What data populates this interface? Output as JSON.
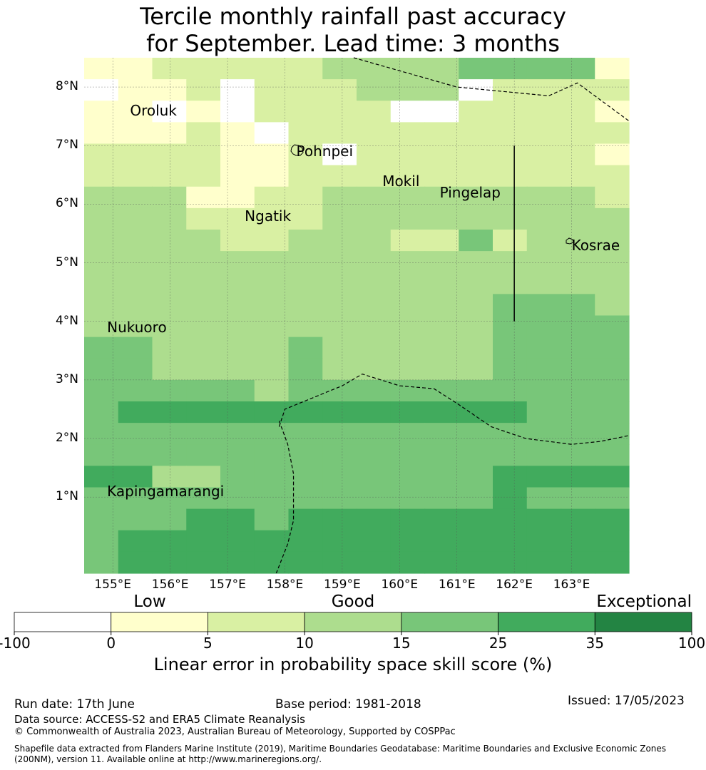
{
  "title": {
    "line1": "Tercile monthly rainfall past accuracy",
    "line2": "for September. Lead time: 3 months"
  },
  "map": {
    "lon_range": [
      154.5,
      164.0
    ],
    "lat_range": [
      -0.3,
      8.5
    ],
    "lat_ticks": [
      {
        "value": 8,
        "label": "8°N"
      },
      {
        "value": 7,
        "label": "7°N"
      },
      {
        "value": 6,
        "label": "6°N"
      },
      {
        "value": 5,
        "label": "5°N"
      },
      {
        "value": 4,
        "label": "4°N"
      },
      {
        "value": 3,
        "label": "3°N"
      },
      {
        "value": 2,
        "label": "2°N"
      },
      {
        "value": 1,
        "label": "1°N"
      }
    ],
    "lon_ticks": [
      {
        "value": 155,
        "label": "155°E"
      },
      {
        "value": 156,
        "label": "156°E"
      },
      {
        "value": 157,
        "label": "157°E"
      },
      {
        "value": 158,
        "label": "158°E"
      },
      {
        "value": 159,
        "label": "159°E"
      },
      {
        "value": 160,
        "label": "160°E"
      },
      {
        "value": 161,
        "label": "161°E"
      },
      {
        "value": 162,
        "label": "162°E"
      },
      {
        "value": 163,
        "label": "163°E"
      }
    ],
    "grid_cell_deg": [
      0.833,
      0.556
    ],
    "skill_grid": [
      "1122222333344441",
      "0112022233302222",
      "1101022220022221",
      "1112102222222222",
      "2222112022222221",
      "2222112222222222",
      "3331122333333332",
      "3332222333333333",
      "3333223332242333",
      "3333333333333333",
      "3333333333333333",
      "3333333333334443",
      "3333333333334444",
      "4433334333334444",
      "4433334333334444",
      "4444434444444444",
      "4555555555555444",
      "4444444444444444",
      "4444444444444444",
      "5533444444445555",
      "4444444444445444",
      "4445545555555555",
      "4555555555555555",
      "4555555555555555"
    ],
    "places": [
      {
        "name": "Oroluk",
        "lon": 155.3,
        "lat": 7.6
      },
      {
        "name": "Pohnpei",
        "lon": 158.2,
        "lat": 6.9
      },
      {
        "name": "Mokil",
        "lon": 159.7,
        "lat": 6.4
      },
      {
        "name": "Pingelap",
        "lon": 160.7,
        "lat": 6.2
      },
      {
        "name": "Ngatik",
        "lon": 157.3,
        "lat": 5.8
      },
      {
        "name": "Kosrae",
        "lon": 163.0,
        "lat": 5.3
      },
      {
        "name": "Nukuoro",
        "lon": 154.9,
        "lat": 3.9
      },
      {
        "name": "Kapingamarangi",
        "lon": 154.9,
        "lat": 1.1
      }
    ],
    "boundary_lines": [
      [
        [
          159.2,
          8.55
        ],
        [
          161.0,
          8.0
        ],
        [
          162.6,
          7.85
        ],
        [
          163.1,
          8.07
        ],
        [
          164.0,
          7.42
        ]
      ],
      [
        [
          157.9,
          2.2
        ],
        [
          158.0,
          2.5
        ],
        [
          158.5,
          2.7
        ],
        [
          159.0,
          2.9
        ],
        [
          159.35,
          3.1
        ],
        [
          160.0,
          2.9
        ],
        [
          160.6,
          2.85
        ],
        [
          161.0,
          2.6
        ],
        [
          161.6,
          2.2
        ],
        [
          162.2,
          2.0
        ],
        [
          163.0,
          1.9
        ],
        [
          163.5,
          1.95
        ],
        [
          164.0,
          2.05
        ]
      ],
      [
        [
          157.9,
          2.3
        ],
        [
          158.05,
          1.9
        ],
        [
          158.15,
          1.4
        ],
        [
          158.15,
          0.6
        ],
        [
          158.05,
          0.2
        ],
        [
          157.85,
          -0.3
        ]
      ]
    ],
    "eez_marker_line": {
      "lon": 162.0,
      "lat": [
        4.0,
        7.0
      ]
    }
  },
  "colorbar": {
    "categories": [
      {
        "label": "Low",
        "pos": 0.2
      },
      {
        "label": "Good",
        "pos": 0.5
      },
      {
        "label": "Exceptional",
        "pos": 0.93
      }
    ],
    "bins": [
      {
        "from": -100,
        "to": 0,
        "color": "#ffffff"
      },
      {
        "from": 0,
        "to": 5,
        "color": "#ffffcc"
      },
      {
        "from": 5,
        "to": 10,
        "color": "#d9f0a3"
      },
      {
        "from": 10,
        "to": 15,
        "color": "#addd8e"
      },
      {
        "from": 15,
        "to": 25,
        "color": "#78c679"
      },
      {
        "from": 25,
        "to": 35,
        "color": "#41ab5d"
      },
      {
        "from": 35,
        "to": 100,
        "color": "#238443"
      }
    ],
    "ticks": [
      "-100",
      "0",
      "5",
      "10",
      "15",
      "25",
      "35",
      "100"
    ],
    "title": "Linear error in probability space skill score (%)"
  },
  "footer": {
    "run_date": "Run date: 17th June",
    "base_period": "Base period: 1981-2018",
    "issued": "Issued: 17/05/2023",
    "data_source": "Data source: ACCESS-S2 and ERA5 Climate Reanalysis",
    "copyright": "© Commonwealth of Australia 2023, Australian Bureau of Meteorology, Supported by COSPPac",
    "shapefile": "Shapefile data extracted from Flanders Marine Institute (2019), Maritime Boundaries Geodatabase: Maritime Boundaries and Exclusive Economic Zones (200NM), version 11. Available online at http://www.marineregions.org/."
  }
}
